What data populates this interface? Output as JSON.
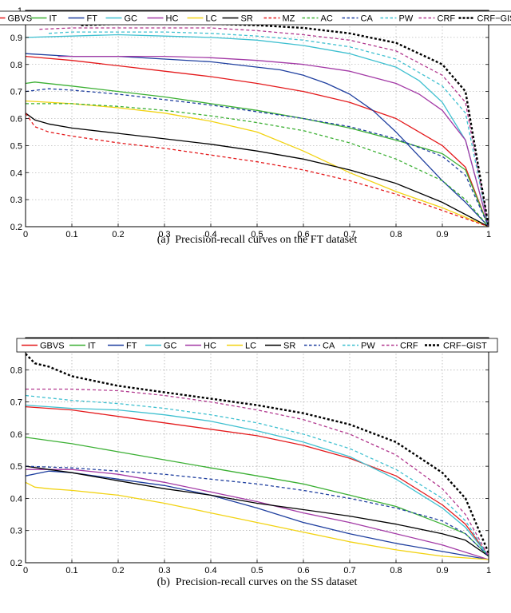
{
  "chart_data": [
    {
      "type": "line",
      "caption": "(a)  Precision-recall curves on the FT dataset",
      "xlim": [
        0,
        1
      ],
      "ylim": [
        0.2,
        1.0
      ],
      "xticks": [
        0,
        0.1,
        0.2,
        0.3,
        0.4,
        0.5,
        0.6,
        0.7,
        0.8,
        0.9,
        1
      ],
      "xtick_labels": [
        "0",
        "0.1",
        "0.2",
        "0.3",
        "0.4",
        "0.5",
        "0.6",
        "0.7",
        "0.8",
        "0.9",
        "1"
      ],
      "yticks": [
        0.2,
        0.3,
        0.4,
        0.5,
        0.6,
        0.7,
        0.8,
        0.9,
        1.0
      ],
      "ytick_labels": [
        "0.2",
        "0.3",
        "0.4",
        "0.5",
        "0.6",
        "0.7",
        "0.8",
        "0.9",
        "1"
      ],
      "grid": true,
      "legend_position": "top",
      "series": [
        {
          "name": "GBVS",
          "color": "#e41a1c",
          "dash": "solid",
          "x": [
            0,
            0.1,
            0.2,
            0.3,
            0.4,
            0.5,
            0.6,
            0.7,
            0.8,
            0.9,
            0.95,
            1.0
          ],
          "y": [
            0.83,
            0.815,
            0.795,
            0.775,
            0.755,
            0.73,
            0.7,
            0.66,
            0.6,
            0.5,
            0.42,
            0.2
          ]
        },
        {
          "name": "IT",
          "color": "#3cb034",
          "dash": "solid",
          "x": [
            0,
            0.02,
            0.1,
            0.2,
            0.3,
            0.4,
            0.5,
            0.6,
            0.7,
            0.8,
            0.9,
            0.95,
            1.0
          ],
          "y": [
            0.73,
            0.735,
            0.72,
            0.7,
            0.68,
            0.655,
            0.63,
            0.6,
            0.565,
            0.52,
            0.47,
            0.41,
            0.2
          ]
        },
        {
          "name": "FT",
          "color": "#1f3f9f",
          "dash": "solid",
          "x": [
            0,
            0.1,
            0.2,
            0.3,
            0.4,
            0.5,
            0.55,
            0.6,
            0.65,
            0.7,
            0.75,
            0.8,
            0.85,
            0.9,
            0.95,
            1.0
          ],
          "y": [
            0.84,
            0.83,
            0.83,
            0.82,
            0.81,
            0.79,
            0.78,
            0.76,
            0.73,
            0.69,
            0.63,
            0.55,
            0.46,
            0.37,
            0.29,
            0.2
          ]
        },
        {
          "name": "GC",
          "color": "#3fc0d0",
          "dash": "solid",
          "x": [
            0,
            0.1,
            0.2,
            0.3,
            0.4,
            0.5,
            0.6,
            0.7,
            0.8,
            0.85,
            0.9,
            0.95,
            1.0
          ],
          "y": [
            0.9,
            0.905,
            0.91,
            0.905,
            0.9,
            0.89,
            0.87,
            0.84,
            0.79,
            0.74,
            0.66,
            0.52,
            0.2
          ]
        },
        {
          "name": "HC",
          "color": "#a33aa6",
          "dash": "solid",
          "x": [
            0.07,
            0.1,
            0.2,
            0.3,
            0.4,
            0.5,
            0.6,
            0.7,
            0.8,
            0.85,
            0.9,
            0.95,
            1.0
          ],
          "y": [
            0.83,
            0.83,
            0.83,
            0.83,
            0.825,
            0.815,
            0.8,
            0.775,
            0.73,
            0.69,
            0.63,
            0.52,
            0.2
          ]
        },
        {
          "name": "LC",
          "color": "#f2d313",
          "dash": "solid",
          "x": [
            0,
            0.1,
            0.2,
            0.3,
            0.4,
            0.5,
            0.6,
            0.7,
            0.8,
            0.9,
            1.0
          ],
          "y": [
            0.665,
            0.655,
            0.64,
            0.62,
            0.59,
            0.55,
            0.48,
            0.4,
            0.33,
            0.27,
            0.2
          ]
        },
        {
          "name": "SR",
          "color": "#000000",
          "dash": "solid",
          "x": [
            0,
            0.02,
            0.05,
            0.1,
            0.2,
            0.3,
            0.4,
            0.5,
            0.6,
            0.7,
            0.8,
            0.9,
            1.0
          ],
          "y": [
            0.62,
            0.595,
            0.58,
            0.565,
            0.545,
            0.525,
            0.505,
            0.48,
            0.45,
            0.41,
            0.36,
            0.29,
            0.2
          ]
        },
        {
          "name": "MZ",
          "color": "#e41a1c",
          "dash": "dashed",
          "x": [
            0,
            0.02,
            0.05,
            0.1,
            0.2,
            0.3,
            0.4,
            0.5,
            0.6,
            0.7,
            0.8,
            0.9,
            1.0
          ],
          "y": [
            0.62,
            0.57,
            0.55,
            0.535,
            0.51,
            0.49,
            0.465,
            0.44,
            0.41,
            0.37,
            0.32,
            0.26,
            0.2
          ]
        },
        {
          "name": "AC",
          "color": "#3cb034",
          "dash": "dashed",
          "x": [
            0,
            0.1,
            0.2,
            0.3,
            0.4,
            0.5,
            0.6,
            0.7,
            0.8,
            0.9,
            0.95,
            1.0
          ],
          "y": [
            0.655,
            0.655,
            0.645,
            0.63,
            0.61,
            0.585,
            0.555,
            0.51,
            0.45,
            0.37,
            0.3,
            0.2
          ]
        },
        {
          "name": "CA",
          "color": "#1f3f9f",
          "dash": "dashed",
          "x": [
            0,
            0.05,
            0.1,
            0.2,
            0.3,
            0.4,
            0.5,
            0.6,
            0.7,
            0.8,
            0.9,
            0.95,
            1.0
          ],
          "y": [
            0.7,
            0.71,
            0.705,
            0.69,
            0.67,
            0.65,
            0.625,
            0.6,
            0.57,
            0.525,
            0.46,
            0.39,
            0.2
          ]
        },
        {
          "name": "PW",
          "color": "#3fc0d0",
          "dash": "dashed",
          "x": [
            0.05,
            0.1,
            0.2,
            0.3,
            0.4,
            0.5,
            0.6,
            0.7,
            0.8,
            0.9,
            0.95,
            1.0
          ],
          "y": [
            0.915,
            0.92,
            0.92,
            0.92,
            0.915,
            0.905,
            0.89,
            0.865,
            0.82,
            0.72,
            0.62,
            0.2
          ]
        },
        {
          "name": "CRF",
          "color": "#b2398f",
          "dash": "dashed",
          "x": [
            0.03,
            0.1,
            0.2,
            0.3,
            0.4,
            0.5,
            0.6,
            0.7,
            0.8,
            0.9,
            0.95,
            1.0
          ],
          "y": [
            0.93,
            0.935,
            0.935,
            0.935,
            0.935,
            0.925,
            0.91,
            0.89,
            0.85,
            0.76,
            0.66,
            0.2
          ]
        },
        {
          "name": "CRF−GIST",
          "color": "#000000",
          "dash": "dashed",
          "x": [
            0.12,
            0.2,
            0.3,
            0.4,
            0.5,
            0.6,
            0.7,
            0.8,
            0.9,
            0.95,
            1.0
          ],
          "y": [
            0.945,
            0.95,
            0.95,
            0.95,
            0.945,
            0.935,
            0.915,
            0.88,
            0.8,
            0.7,
            0.2
          ]
        }
      ]
    },
    {
      "type": "line",
      "caption": "(b)  Precision-recall curves on the SS dataset",
      "xlim": [
        0,
        1
      ],
      "ylim": [
        0.2,
        0.9
      ],
      "xticks": [
        0,
        0.1,
        0.2,
        0.3,
        0.4,
        0.5,
        0.6,
        0.7,
        0.8,
        0.9,
        1
      ],
      "xtick_labels": [
        "0",
        "0.1",
        "0.2",
        "0.3",
        "0.4",
        "0.5",
        "0.6",
        "0.7",
        "0.8",
        "0.9",
        "1"
      ],
      "yticks": [
        0.2,
        0.3,
        0.4,
        0.5,
        0.6,
        0.7,
        0.8
      ],
      "ytick_labels": [
        "0.2",
        "0.3",
        "0.4",
        "0.5",
        "0.6",
        "0.7",
        "0.8"
      ],
      "grid": true,
      "legend_position": "top",
      "series": [
        {
          "name": "GBVS",
          "color": "#e41a1c",
          "dash": "solid",
          "x": [
            0,
            0.1,
            0.2,
            0.3,
            0.4,
            0.5,
            0.6,
            0.7,
            0.8,
            0.9,
            0.95,
            1.0
          ],
          "y": [
            0.685,
            0.675,
            0.655,
            0.635,
            0.615,
            0.595,
            0.565,
            0.525,
            0.47,
            0.38,
            0.32,
            0.22
          ]
        },
        {
          "name": "IT",
          "color": "#3cb034",
          "dash": "solid",
          "x": [
            0,
            0.1,
            0.2,
            0.3,
            0.4,
            0.5,
            0.6,
            0.7,
            0.8,
            0.9,
            0.95,
            1.0
          ],
          "y": [
            0.59,
            0.57,
            0.545,
            0.52,
            0.495,
            0.47,
            0.445,
            0.41,
            0.375,
            0.32,
            0.29,
            0.22
          ]
        },
        {
          "name": "FT",
          "color": "#1f3f9f",
          "dash": "solid",
          "x": [
            0,
            0.05,
            0.1,
            0.2,
            0.3,
            0.4,
            0.5,
            0.6,
            0.7,
            0.8,
            0.9,
            1.0
          ],
          "y": [
            0.47,
            0.485,
            0.48,
            0.46,
            0.44,
            0.41,
            0.37,
            0.325,
            0.29,
            0.26,
            0.235,
            0.21
          ]
        },
        {
          "name": "GC",
          "color": "#3fc0d0",
          "dash": "solid",
          "x": [
            0,
            0.1,
            0.2,
            0.3,
            0.4,
            0.5,
            0.6,
            0.7,
            0.8,
            0.9,
            0.95,
            1.0
          ],
          "y": [
            0.69,
            0.68,
            0.675,
            0.66,
            0.64,
            0.61,
            0.575,
            0.53,
            0.46,
            0.37,
            0.31,
            0.22
          ]
        },
        {
          "name": "HC",
          "color": "#a33aa6",
          "dash": "solid",
          "x": [
            0,
            0.1,
            0.2,
            0.3,
            0.4,
            0.5,
            0.6,
            0.7,
            0.8,
            0.9,
            1.0
          ],
          "y": [
            0.49,
            0.49,
            0.475,
            0.45,
            0.42,
            0.39,
            0.355,
            0.325,
            0.29,
            0.255,
            0.21
          ]
        },
        {
          "name": "LC",
          "color": "#f2d313",
          "dash": "solid",
          "x": [
            0,
            0.02,
            0.05,
            0.1,
            0.2,
            0.3,
            0.4,
            0.5,
            0.6,
            0.7,
            0.8,
            0.9,
            1.0
          ],
          "y": [
            0.45,
            0.435,
            0.43,
            0.425,
            0.41,
            0.385,
            0.355,
            0.325,
            0.295,
            0.265,
            0.24,
            0.22,
            0.21
          ]
        },
        {
          "name": "SR",
          "color": "#000000",
          "dash": "solid",
          "x": [
            0,
            0.1,
            0.2,
            0.3,
            0.4,
            0.5,
            0.6,
            0.7,
            0.8,
            0.9,
            0.95,
            1.0
          ],
          "y": [
            0.5,
            0.48,
            0.455,
            0.43,
            0.41,
            0.385,
            0.365,
            0.345,
            0.32,
            0.29,
            0.27,
            0.22
          ]
        },
        {
          "name": "CA",
          "color": "#1f3f9f",
          "dash": "dashed",
          "x": [
            0,
            0.1,
            0.2,
            0.3,
            0.4,
            0.5,
            0.6,
            0.7,
            0.8,
            0.9,
            0.95,
            1.0
          ],
          "y": [
            0.5,
            0.495,
            0.485,
            0.475,
            0.46,
            0.445,
            0.425,
            0.4,
            0.37,
            0.33,
            0.29,
            0.22
          ]
        },
        {
          "name": "PW",
          "color": "#3fc0d0",
          "dash": "dashed",
          "x": [
            0,
            0.1,
            0.2,
            0.3,
            0.4,
            0.5,
            0.6,
            0.7,
            0.8,
            0.9,
            0.95,
            1.0
          ],
          "y": [
            0.72,
            0.705,
            0.695,
            0.68,
            0.66,
            0.635,
            0.6,
            0.555,
            0.49,
            0.4,
            0.33,
            0.22
          ]
        },
        {
          "name": "CRF",
          "color": "#b2398f",
          "dash": "dashed",
          "x": [
            0,
            0.1,
            0.2,
            0.3,
            0.4,
            0.5,
            0.6,
            0.7,
            0.8,
            0.9,
            0.95,
            1.0
          ],
          "y": [
            0.74,
            0.74,
            0.735,
            0.72,
            0.7,
            0.675,
            0.645,
            0.6,
            0.535,
            0.43,
            0.35,
            0.22
          ]
        },
        {
          "name": "CRF−GIST",
          "color": "#000000",
          "dash": "dashed",
          "x": [
            0,
            0.02,
            0.05,
            0.1,
            0.15,
            0.2,
            0.3,
            0.4,
            0.5,
            0.6,
            0.7,
            0.8,
            0.9,
            0.95,
            1.0
          ],
          "y": [
            0.85,
            0.82,
            0.81,
            0.78,
            0.765,
            0.75,
            0.73,
            0.71,
            0.69,
            0.665,
            0.63,
            0.575,
            0.48,
            0.4,
            0.23
          ]
        }
      ]
    }
  ]
}
